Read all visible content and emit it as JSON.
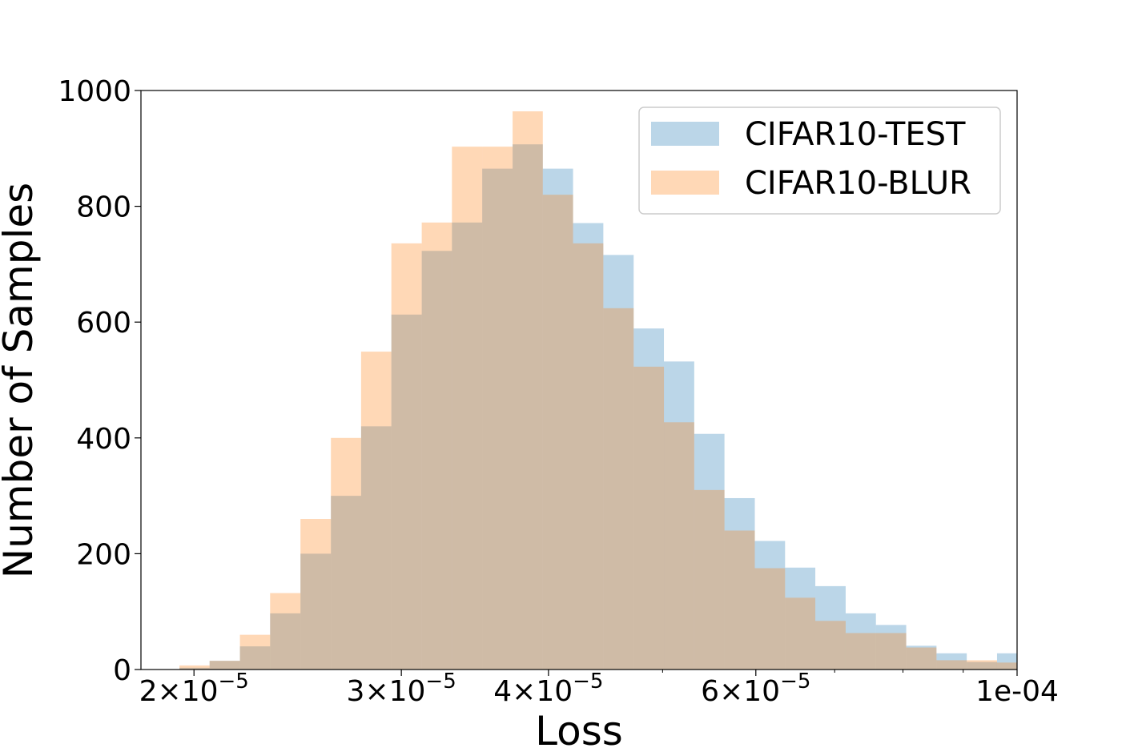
{
  "chart_data": {
    "type": "histogram",
    "xscale": "log",
    "xlabel": "Loss",
    "ylabel": "Number of Samples",
    "xlim": [
      1.803e-05,
      0.0001
    ],
    "ylim": [
      0,
      1000
    ],
    "grid": false,
    "legend_position": "top-right",
    "x_ticks": [
      {
        "value": 2e-05,
        "mantissa": "2",
        "times": "×",
        "base": "10",
        "exp": "−5"
      },
      {
        "value": 3e-05,
        "mantissa": "3",
        "times": "×",
        "base": "10",
        "exp": "−5"
      },
      {
        "value": 4e-05,
        "mantissa": "4",
        "times": "×",
        "base": "10",
        "exp": "−5"
      },
      {
        "value": 6e-05,
        "mantissa": "6",
        "times": "×",
        "base": "10",
        "exp": "−5"
      },
      {
        "value": 0.0001,
        "label": "1e-04"
      }
    ],
    "y_ticks": [
      {
        "value": 0,
        "label": "0"
      },
      {
        "value": 200,
        "label": "200"
      },
      {
        "value": 400,
        "label": "400"
      },
      {
        "value": 600,
        "label": "600"
      },
      {
        "value": 800,
        "label": "800"
      },
      {
        "value": 1000,
        "label": "1000"
      }
    ],
    "bin_edges": [
      1.944e-05,
      2.062e-05,
      2.188e-05,
      2.321e-05,
      2.463e-05,
      2.614e-05,
      2.773e-05,
      2.942e-05,
      3.122e-05,
      3.312e-05,
      3.514e-05,
      3.729e-05,
      3.956e-05,
      4.197e-05,
      4.453e-05,
      4.725e-05,
      5.013e-05,
      5.319e-05,
      5.643e-05,
      5.988e-05,
      6.353e-05,
      6.74e-05,
      7.152e-05,
      7.588e-05,
      8.051e-05,
      8.542e-05,
      9.063e-05,
      9.616e-05,
      0.0001
    ],
    "series": [
      {
        "name": "CIFAR10-TEST",
        "color": "#1f77b4",
        "opacity": 0.3,
        "values": [
          3,
          15,
          40,
          97,
          200,
          300,
          420,
          613,
          723,
          772,
          865,
          907,
          865,
          771,
          716,
          589,
          532,
          407,
          296,
          222,
          176,
          144,
          97,
          77,
          41,
          28,
          13,
          28
        ]
      },
      {
        "name": "CIFAR10-BLUR",
        "color": "#ff7f0e",
        "opacity": 0.3,
        "values": [
          7,
          15,
          60,
          132,
          260,
          400,
          549,
          736,
          772,
          903,
          903,
          964,
          820,
          736,
          624,
          523,
          427,
          310,
          240,
          175,
          124,
          84,
          63,
          63,
          38,
          16,
          16,
          12
        ]
      }
    ]
  }
}
